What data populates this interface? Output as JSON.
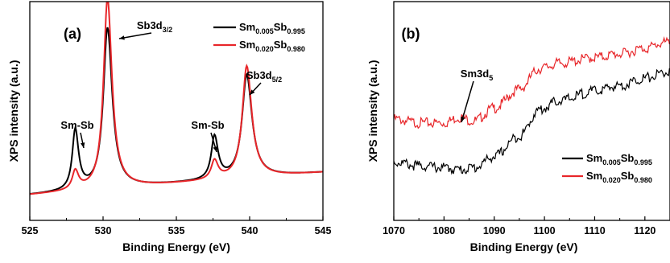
{
  "chart_data": [
    {
      "type": "line",
      "panel_label": "(a)",
      "xlabel": "Binding Energy (eV)",
      "ylabel": "XPS intensity (a.u.)",
      "xlim": [
        525,
        545
      ],
      "xticks": [
        "525",
        "530",
        "535",
        "540",
        "545"
      ],
      "y_ticks_shown": false,
      "grid": false,
      "legend": {
        "placement": "top-right",
        "entries": [
          {
            "parts": [
              [
                "Sm",
                ""
              ],
              [
                "0.005",
                "sub"
              ],
              [
                "Sb",
                ""
              ],
              [
                "0.995",
                "sub"
              ]
            ],
            "color": "#000000"
          },
          {
            "parts": [
              [
                "Sm",
                ""
              ],
              [
                "0.020",
                "sub"
              ],
              [
                "Sb",
                ""
              ],
              [
                "0.980",
                "sub"
              ]
            ],
            "color": "#e8262a"
          }
        ]
      },
      "annotations": [
        {
          "parts": [
            [
              "Sm-Sb",
              ""
            ]
          ],
          "x": 528.1
        },
        {
          "parts": [
            [
              "Sb3d",
              ""
            ],
            [
              "3/2",
              "sub"
            ]
          ],
          "x": 530.3
        },
        {
          "parts": [
            [
              "Sm-Sb",
              ""
            ]
          ],
          "x": 537.6
        },
        {
          "parts": [
            [
              "Sb3d",
              ""
            ],
            [
              "5/2",
              "sub"
            ]
          ],
          "x": 539.8
        }
      ],
      "series": [
        {
          "color": "#000000",
          "baseline": 0.05,
          "slope": 0.12,
          "peaks": [
            [
              528.1,
              0.9,
              0.24
            ],
            [
              530.3,
              0.92,
              0.34
            ],
            [
              537.6,
              0.92,
              0.26
            ],
            [
              539.8,
              0.92,
              0.38
            ]
          ],
          "heights": [
            0.32,
            0.86,
            0.23,
            0.55
          ]
        },
        {
          "color": "#e8262a",
          "baseline": 0.05,
          "slope": 0.12,
          "peaks": [
            [
              528.1,
              0.9,
              0.24
            ],
            [
              530.3,
              0.92,
              0.32
            ],
            [
              537.6,
              0.92,
              0.26
            ],
            [
              539.8,
              0.92,
              0.36
            ]
          ],
          "heights": [
            0.1,
            1.02,
            0.1,
            0.6
          ]
        }
      ]
    },
    {
      "type": "line",
      "panel_label": "(b)",
      "xlabel": "Binding Energy (eV)",
      "ylabel": "XPS intensity (a.u.)",
      "xlim": [
        1070,
        1125
      ],
      "xticks": [
        "1070",
        "1080",
        "1090",
        "1100",
        "1110",
        "1120"
      ],
      "y_ticks_shown": false,
      "grid": false,
      "legend": {
        "placement": "bottom-right",
        "entries": [
          {
            "parts": [
              [
                "Sm",
                ""
              ],
              [
                "0.005",
                "sub"
              ],
              [
                "Sb",
                ""
              ],
              [
                "0.995",
                "sub"
              ]
            ],
            "color": "#000000"
          },
          {
            "parts": [
              [
                "Sm",
                ""
              ],
              [
                "0.020",
                "sub"
              ],
              [
                "Sb",
                ""
              ],
              [
                "0.980",
                "sub"
              ]
            ],
            "color": "#e8262a"
          }
        ]
      },
      "annotations": [
        {
          "parts": [
            [
              "Sm3d",
              ""
            ],
            [
              "5",
              "sub"
            ]
          ],
          "x": 1083
        }
      ],
      "series": [
        {
          "color": "#e8262a",
          "points": [
            [
              1070,
              0.47
            ],
            [
              1075,
              0.45
            ],
            [
              1080,
              0.45
            ],
            [
              1083,
              0.48
            ],
            [
              1086,
              0.46
            ],
            [
              1090,
              0.53
            ],
            [
              1095,
              0.63
            ],
            [
              1099,
              0.74
            ],
            [
              1103,
              0.77
            ],
            [
              1110,
              0.8
            ],
            [
              1115,
              0.82
            ],
            [
              1120,
              0.85
            ],
            [
              1124,
              0.88
            ]
          ]
        },
        {
          "color": "#000000",
          "points": [
            [
              1070,
              0.24
            ],
            [
              1075,
              0.22
            ],
            [
              1080,
              0.21
            ],
            [
              1083,
              0.2
            ],
            [
              1086,
              0.21
            ],
            [
              1090,
              0.27
            ],
            [
              1095,
              0.38
            ],
            [
              1099,
              0.52
            ],
            [
              1103,
              0.57
            ],
            [
              1110,
              0.62
            ],
            [
              1115,
              0.65
            ],
            [
              1120,
              0.69
            ],
            [
              1124,
              0.72
            ]
          ]
        }
      ]
    }
  ]
}
